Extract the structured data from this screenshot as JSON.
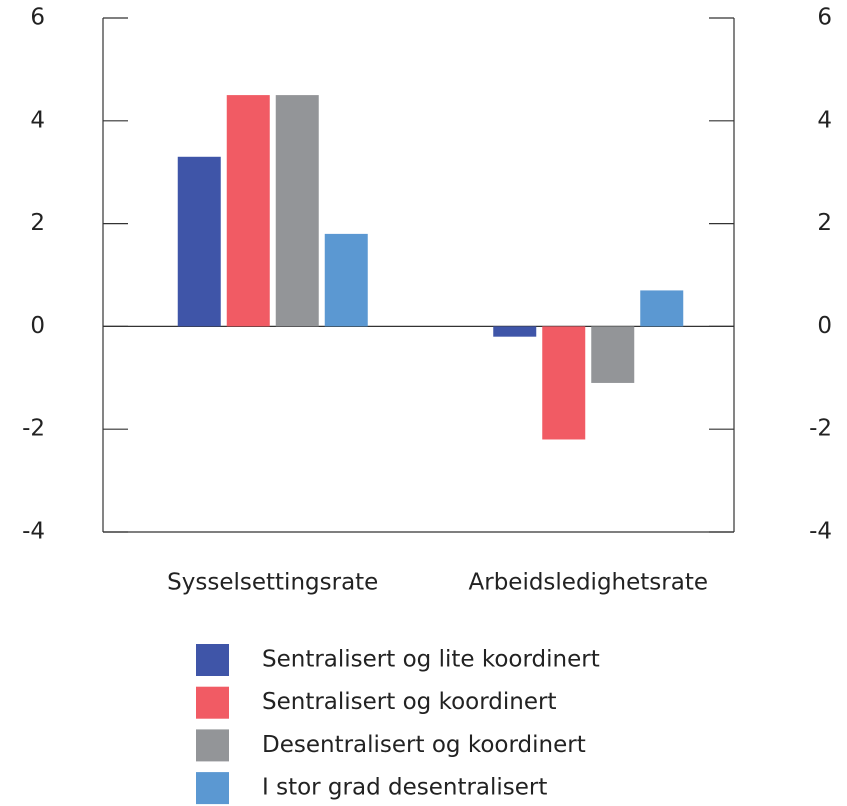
{
  "chart_data": {
    "type": "bar",
    "categories": [
      "Sysselsettingsrate",
      "Arbeidsledighetsrate"
    ],
    "series": [
      {
        "name": "Sentralisert og lite koordinert",
        "color": "#3f55a8",
        "values": [
          3.3,
          -0.2
        ]
      },
      {
        "name": "Sentralisert og koordinert",
        "color": "#f15b64",
        "values": [
          4.5,
          -2.2
        ]
      },
      {
        "name": "Desentralisert og koordinert",
        "color": "#939598",
        "values": [
          4.5,
          -1.1
        ]
      },
      {
        "name": "I stor grad desentralisert",
        "color": "#5b98d2",
        "values": [
          1.8,
          0.7
        ]
      }
    ],
    "ylim": [
      -4,
      6
    ],
    "yticks": [
      -4,
      -2,
      0,
      2,
      4,
      6
    ],
    "y2lim": [
      -4,
      6
    ],
    "y2ticks": [
      -4,
      -2,
      0,
      2,
      4,
      6
    ],
    "legend": "bottom"
  }
}
